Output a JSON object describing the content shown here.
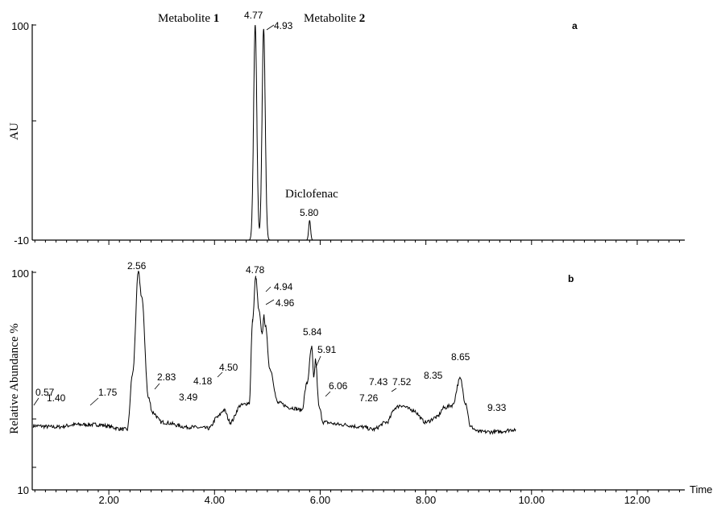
{
  "chart_data": [
    {
      "panel": "a",
      "type": "line",
      "ylabel": "AU",
      "ylim": [
        -10,
        100
      ],
      "y_tick_labels": [
        "100",
        "-10"
      ],
      "xlim": [
        0.55,
        12.9
      ],
      "annotations": [
        {
          "text": "Metabolite",
          "bold_suffix": "1",
          "at_x": 4.77
        },
        {
          "text": "Metabolite",
          "bold_suffix": "2",
          "at_x": 4.93
        },
        {
          "text": "Diclofenac",
          "at_x": 5.8
        }
      ],
      "peak_labels": [
        "4.77",
        "4.93",
        "5.80"
      ],
      "peaks": [
        {
          "rt": 4.77,
          "height": 100
        },
        {
          "rt": 4.93,
          "height": 98
        },
        {
          "rt": 5.8,
          "height": 0
        }
      ],
      "baseline": -10
    },
    {
      "panel": "b",
      "type": "line",
      "ylabel": "Relative Abundance %",
      "ylim": [
        10,
        100
      ],
      "y_tick_labels": [
        "100",
        "10"
      ],
      "xlabel": "Time",
      "xlim": [
        0.55,
        12.9
      ],
      "x_tick_labels": [
        "2.00",
        "4.00",
        "6.00",
        "8.00",
        "10.00",
        "12.00"
      ],
      "x_ticks": [
        2,
        4,
        6,
        8,
        10,
        12
      ],
      "peak_labels": [
        "0.57",
        "1.40",
        "1.75",
        "2.56",
        "2.83",
        "3.49",
        "4.18",
        "4.50",
        "4.78",
        "4.94",
        "4.96",
        "5.84",
        "5.91",
        "6.06",
        "7.26",
        "7.43",
        "7.52",
        "8.35",
        "8.65",
        "9.33"
      ],
      "points": [
        [
          0.57,
          36.5
        ],
        [
          1.0,
          36
        ],
        [
          1.4,
          37
        ],
        [
          1.75,
          37
        ],
        [
          2.35,
          35
        ],
        [
          2.45,
          58
        ],
        [
          2.56,
          100
        ],
        [
          2.62,
          90
        ],
        [
          2.75,
          48
        ],
        [
          2.83,
          42
        ],
        [
          3.0,
          38
        ],
        [
          3.49,
          36
        ],
        [
          3.9,
          35.5
        ],
        [
          4.05,
          40
        ],
        [
          4.18,
          43
        ],
        [
          4.3,
          38
        ],
        [
          4.5,
          45
        ],
        [
          4.66,
          46
        ],
        [
          4.72,
          80
        ],
        [
          4.78,
          98
        ],
        [
          4.84,
          84
        ],
        [
          4.9,
          75
        ],
        [
          4.94,
          82
        ],
        [
          4.96,
          78
        ],
        [
          5.05,
          60
        ],
        [
          5.2,
          46
        ],
        [
          5.45,
          44
        ],
        [
          5.65,
          43
        ],
        [
          5.75,
          54
        ],
        [
          5.84,
          69
        ],
        [
          5.88,
          56
        ],
        [
          5.91,
          64
        ],
        [
          5.98,
          44
        ],
        [
          6.06,
          38
        ],
        [
          6.4,
          37
        ],
        [
          6.8,
          36
        ],
        [
          7.0,
          35
        ],
        [
          7.26,
          38
        ],
        [
          7.43,
          44
        ],
        [
          7.52,
          45
        ],
        [
          7.75,
          43
        ],
        [
          8.0,
          38
        ],
        [
          8.2,
          40
        ],
        [
          8.35,
          44
        ],
        [
          8.5,
          45
        ],
        [
          8.65,
          56
        ],
        [
          8.75,
          46
        ],
        [
          8.85,
          36
        ],
        [
          9.0,
          34
        ],
        [
          9.33,
          34
        ],
        [
          9.7,
          35
        ]
      ]
    }
  ],
  "panel_labels": {
    "a": "a",
    "b": "b"
  },
  "annotation_texts": {
    "metabolite_1": "Metabolite",
    "metabolite_1_num": "1",
    "metabolite_2": "Metabolite",
    "metabolite_2_num": "2",
    "diclofenac": "Diclofenac"
  }
}
